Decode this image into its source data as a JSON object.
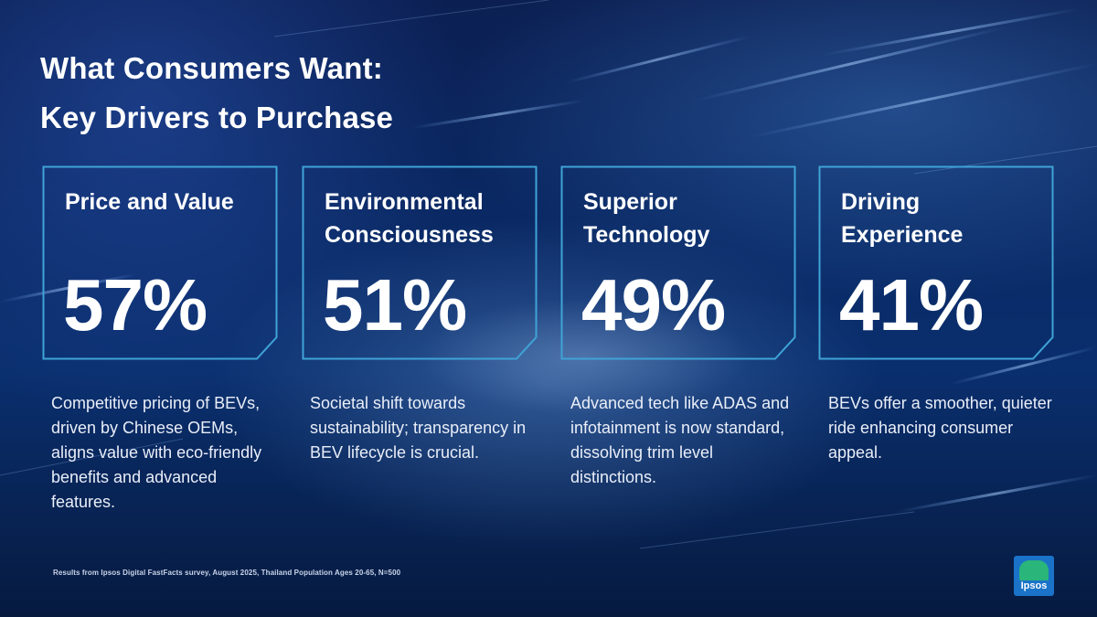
{
  "title": {
    "line1": "What Consumers Want:",
    "line2": "Key Drivers to Purchase"
  },
  "drivers": [
    {
      "title": "Price and Value",
      "value": "57%",
      "description": "Competitive pricing of BEVs, driven by Chinese OEMs, aligns value with eco-friendly benefits and advanced features."
    },
    {
      "title": "Environmental Consciousness",
      "value": "51%",
      "description": "Societal shift towards sustainability; transparency in BEV lifecycle is crucial."
    },
    {
      "title": "Superior Technology",
      "value": "49%",
      "description": "Advanced tech like ADAS and infotainment is now standard, dissolving trim level distinctions."
    },
    {
      "title": "Driving Experience",
      "value": "41%",
      "description": "BEVs offer a smoother, quieter ride enhancing consumer appeal."
    }
  ],
  "footnote": "Results from Ipsos Digital FastFacts survey, August 2025, Thailand Population Ages 20-65, N=500",
  "logo": {
    "text": "Ipsos",
    "colors": {
      "background": "#1a73c8",
      "shape": "#2ab57a"
    }
  },
  "colors": {
    "frame": "#3fa3d6",
    "background": "#0a2a66",
    "text": "#ffffff"
  }
}
